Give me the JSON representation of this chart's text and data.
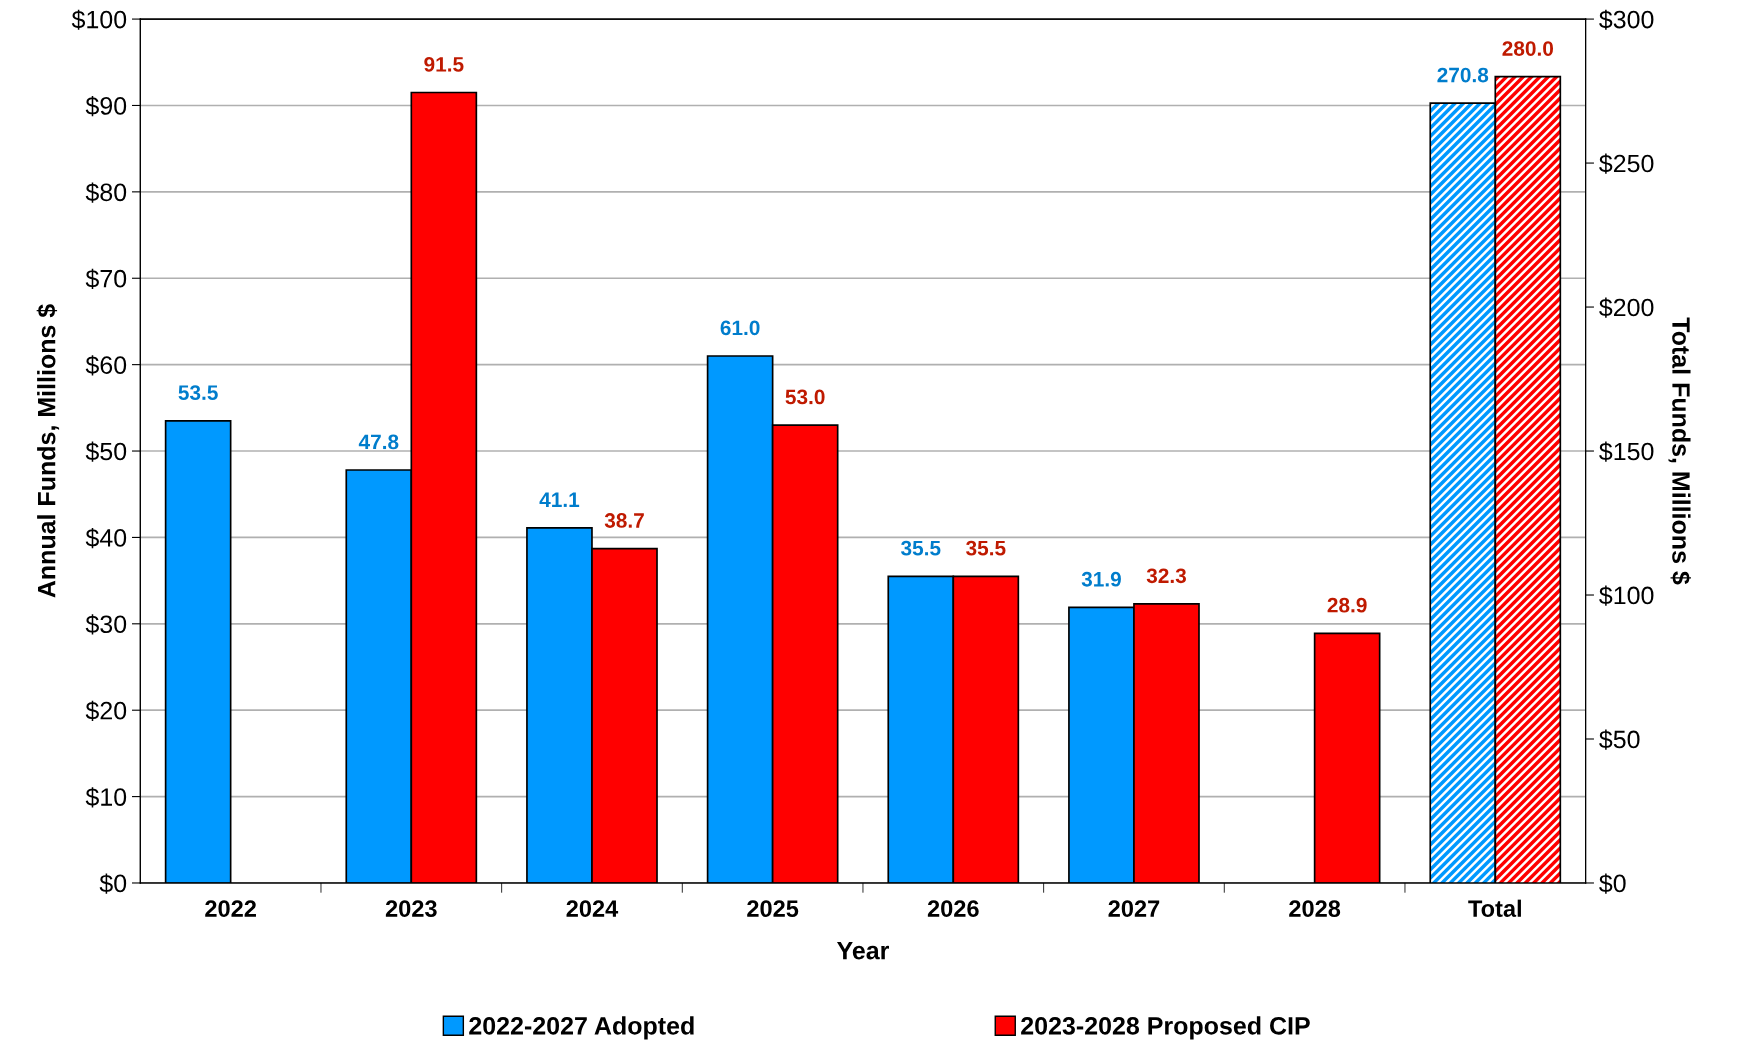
{
  "chart_data": {
    "type": "bar",
    "xlabel": "Year",
    "ylabel": "Annual Funds, Millions $",
    "y2label": "Total Funds, Millions $",
    "categories": [
      "2022",
      "2023",
      "2024",
      "2025",
      "2026",
      "2027",
      "2028",
      "Total"
    ],
    "series": [
      {
        "name": "2022-2027 Adopted",
        "color": "#0099ff",
        "values": [
          53.5,
          47.8,
          41.1,
          61.0,
          35.5,
          31.9,
          null,
          null
        ],
        "value_labels": [
          "53.5",
          "47.8",
          "41.1",
          "61.0",
          "35.5",
          "31.9",
          null,
          null
        ]
      },
      {
        "name": "2023-2028 Proposed CIP",
        "color": "#ff0000",
        "values": [
          null,
          91.5,
          38.7,
          53.0,
          35.5,
          32.3,
          28.9,
          null
        ],
        "value_labels": [
          null,
          "91.5",
          "38.7",
          "53.0",
          "35.5",
          "32.3",
          "28.9",
          null
        ]
      },
      {
        "color": "#0099ff",
        "axis": "y2",
        "values": [
          null,
          null,
          null,
          null,
          null,
          null,
          null,
          270.8
        ],
        "value_labels": [
          null,
          null,
          null,
          null,
          null,
          null,
          null,
          "270.8"
        ]
      },
      {
        "color": "#ff0000",
        "axis": "y2",
        "values": [
          null,
          null,
          null,
          null,
          null,
          null,
          null,
          280.0
        ],
        "value_labels": [
          null,
          null,
          null,
          null,
          null,
          null,
          null,
          "280.0"
        ]
      }
    ],
    "ylim": [
      0,
      100
    ],
    "yticks": [
      {
        "value": 0,
        "label": "$0"
      },
      {
        "value": 10,
        "label": "$10"
      },
      {
        "value": 20,
        "label": "$20"
      },
      {
        "value": 30,
        "label": "$30"
      },
      {
        "value": 40,
        "label": "$40"
      },
      {
        "value": 50,
        "label": "$50"
      },
      {
        "value": 60,
        "label": "$60"
      },
      {
        "value": 70,
        "label": "$70"
      },
      {
        "value": 80,
        "label": "$80"
      },
      {
        "value": 90,
        "label": "$90"
      },
      {
        "value": 100,
        "label": "$100"
      }
    ],
    "y2lim": [
      0,
      300
    ],
    "y2ticks": [
      {
        "value": 0,
        "label": "$0"
      },
      {
        "value": 50,
        "label": "$50"
      },
      {
        "value": 100,
        "label": "$100"
      },
      {
        "value": 150,
        "label": "$150"
      },
      {
        "value": 200,
        "label": "$200"
      },
      {
        "value": 250,
        "label": "$250"
      },
      {
        "value": 300,
        "label": "$300"
      }
    ],
    "grid": "y",
    "legend": "bottom"
  }
}
